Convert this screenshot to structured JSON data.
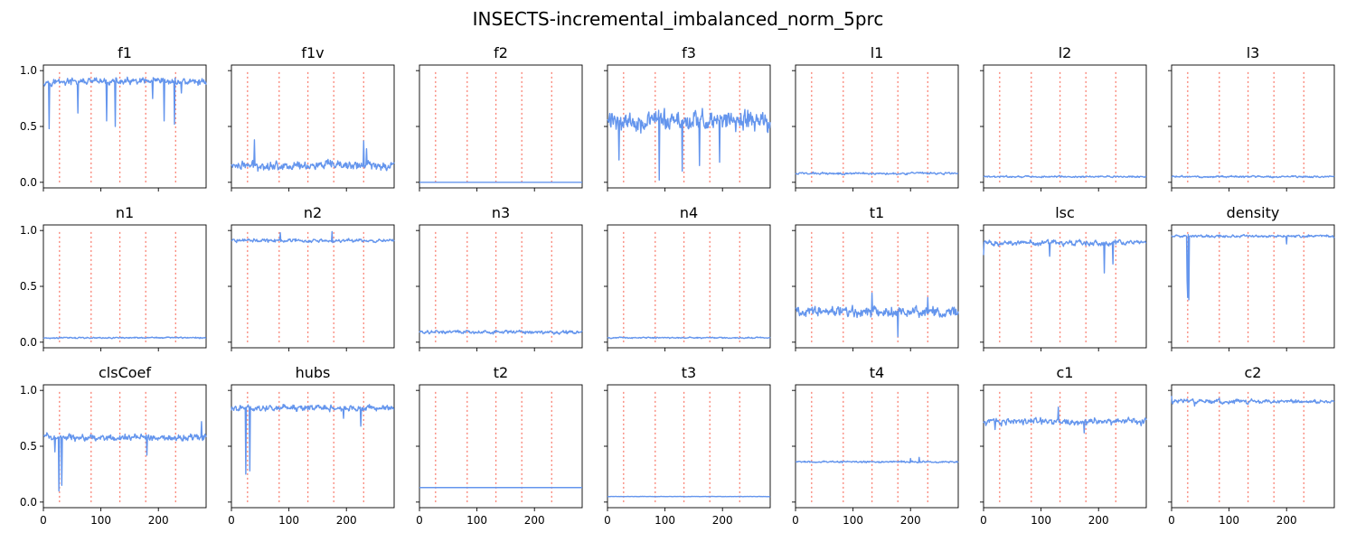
{
  "title": "INSECTS-incremental_imbalanced_norm_5prc",
  "colors": {
    "series": "#6495ED",
    "drift": "#FA8072"
  },
  "chart_data": {
    "type": "line",
    "layout": "3x7 subplots, shared x and y axes",
    "xlim": [
      0,
      283
    ],
    "ylim": [
      -0.05,
      1.05
    ],
    "xticks": [
      0,
      100,
      200
    ],
    "yticks": [
      0.0,
      0.5,
      1.0
    ],
    "ytick_labels": [
      "0.0",
      "0.5",
      "1.0"
    ],
    "drift_lines_x": [
      28,
      83,
      133,
      178,
      230
    ],
    "drift_line_range": [
      0,
      1
    ],
    "n_points": 284,
    "panels": [
      {
        "name": "f1",
        "mean": 0.9,
        "noise": 0.04,
        "dips": [
          [
            10,
            0.48
          ],
          [
            60,
            0.62
          ],
          [
            110,
            0.55
          ],
          [
            125,
            0.5
          ],
          [
            190,
            0.75
          ],
          [
            210,
            0.55
          ],
          [
            228,
            0.52
          ],
          [
            240,
            0.8
          ]
        ]
      },
      {
        "name": "f1v",
        "mean": 0.15,
        "noise": 0.05,
        "dips": [
          [
            40,
            0.38
          ],
          [
            230,
            0.37
          ],
          [
            235,
            0.3
          ]
        ]
      },
      {
        "name": "f2",
        "mean": 0.0,
        "noise": 0.0,
        "dips": []
      },
      {
        "name": "f3",
        "mean": 0.55,
        "noise": 0.12,
        "dips": [
          [
            20,
            0.2
          ],
          [
            90,
            0.02
          ],
          [
            130,
            0.1
          ],
          [
            160,
            0.15
          ],
          [
            195,
            0.18
          ]
        ]
      },
      {
        "name": "l1",
        "mean": 0.08,
        "noise": 0.012,
        "dips": []
      },
      {
        "name": "l2",
        "mean": 0.05,
        "noise": 0.01,
        "dips": []
      },
      {
        "name": "l3",
        "mean": 0.05,
        "noise": 0.01,
        "dips": []
      },
      {
        "name": "n1",
        "mean": 0.04,
        "noise": 0.008,
        "dips": []
      },
      {
        "name": "n2",
        "mean": 0.91,
        "noise": 0.02,
        "dips": [
          [
            85,
            0.98
          ],
          [
            175,
            0.99
          ]
        ]
      },
      {
        "name": "n3",
        "mean": 0.09,
        "noise": 0.02,
        "dips": []
      },
      {
        "name": "n4",
        "mean": 0.04,
        "noise": 0.008,
        "dips": []
      },
      {
        "name": "t1",
        "mean": 0.27,
        "noise": 0.06,
        "dips": [
          [
            133,
            0.44
          ],
          [
            178,
            0.05
          ],
          [
            230,
            0.4
          ]
        ]
      },
      {
        "name": "lsc",
        "mean": 0.89,
        "noise": 0.03,
        "dips": [
          [
            0,
            0.78
          ],
          [
            115,
            0.77
          ],
          [
            210,
            0.62
          ],
          [
            225,
            0.7
          ]
        ]
      },
      {
        "name": "density",
        "mean": 0.95,
        "noise": 0.015,
        "dips": [
          [
            27,
            0.55
          ],
          [
            28,
            0.4
          ],
          [
            30,
            0.38
          ],
          [
            200,
            0.88
          ]
        ]
      },
      {
        "name": "clsCoef",
        "mean": 0.58,
        "noise": 0.04,
        "dips": [
          [
            20,
            0.45
          ],
          [
            27,
            0.1
          ],
          [
            32,
            0.15
          ],
          [
            180,
            0.42
          ],
          [
            275,
            0.72
          ]
        ]
      },
      {
        "name": "hubs",
        "mean": 0.84,
        "noise": 0.035,
        "dips": [
          [
            25,
            0.25
          ],
          [
            32,
            0.28
          ],
          [
            195,
            0.75
          ],
          [
            225,
            0.68
          ]
        ]
      },
      {
        "name": "t2",
        "mean": 0.13,
        "noise": 0.0,
        "dips": []
      },
      {
        "name": "t3",
        "mean": 0.05,
        "noise": 0.002,
        "dips": []
      },
      {
        "name": "t4",
        "mean": 0.36,
        "noise": 0.01,
        "dips": [
          [
            200,
            0.39
          ],
          [
            215,
            0.4
          ]
        ]
      },
      {
        "name": "c1",
        "mean": 0.72,
        "noise": 0.04,
        "dips": [
          [
            20,
            0.65
          ],
          [
            130,
            0.85
          ],
          [
            175,
            0.62
          ]
        ]
      },
      {
        "name": "c2",
        "mean": 0.9,
        "noise": 0.025,
        "dips": [
          [
            0,
            0.95
          ],
          [
            40,
            0.86
          ]
        ]
      }
    ]
  }
}
